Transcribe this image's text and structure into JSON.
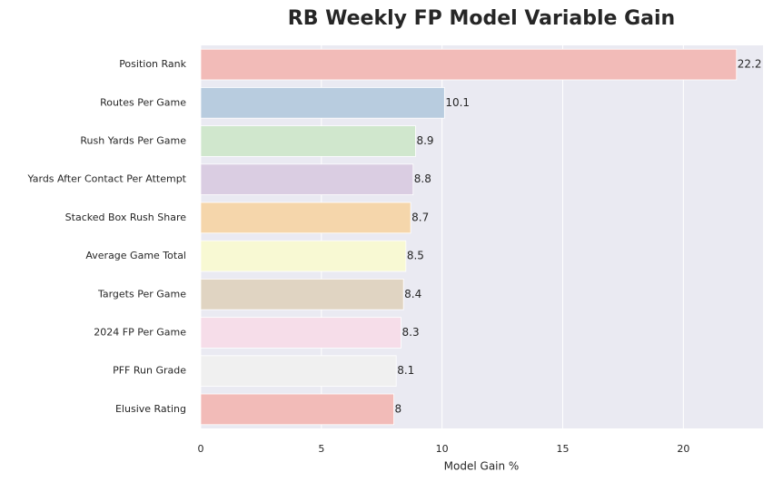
{
  "chart_data": {
    "type": "barh",
    "title": "RB Weekly FP Model Variable Gain",
    "xlabel": "Model Gain %",
    "categories": [
      "Position Rank",
      "Routes Per Game",
      "Rush Yards Per Game",
      "Yards After Contact Per Attempt",
      "Stacked Box Rush Share",
      "Average Game Total",
      "Targets Per Game",
      "2024 FP Per Game",
      "PFF Run Grade",
      "Elusive Rating"
    ],
    "values": [
      22.2,
      10.1,
      8.9,
      8.8,
      8.7,
      8.5,
      8.4,
      8.3,
      8.1,
      8
    ],
    "colors": [
      "#f2bbb8",
      "#b8ccdf",
      "#d0e7cd",
      "#dacde2",
      "#f5d6ab",
      "#f8f9d3",
      "#e0d4c2",
      "#f6dde9",
      "#f0f0f0",
      "#f2bbb8"
    ],
    "xlim": [
      0,
      23.3
    ],
    "xticks": [
      0,
      5,
      10,
      15,
      20
    ],
    "grid": true
  }
}
